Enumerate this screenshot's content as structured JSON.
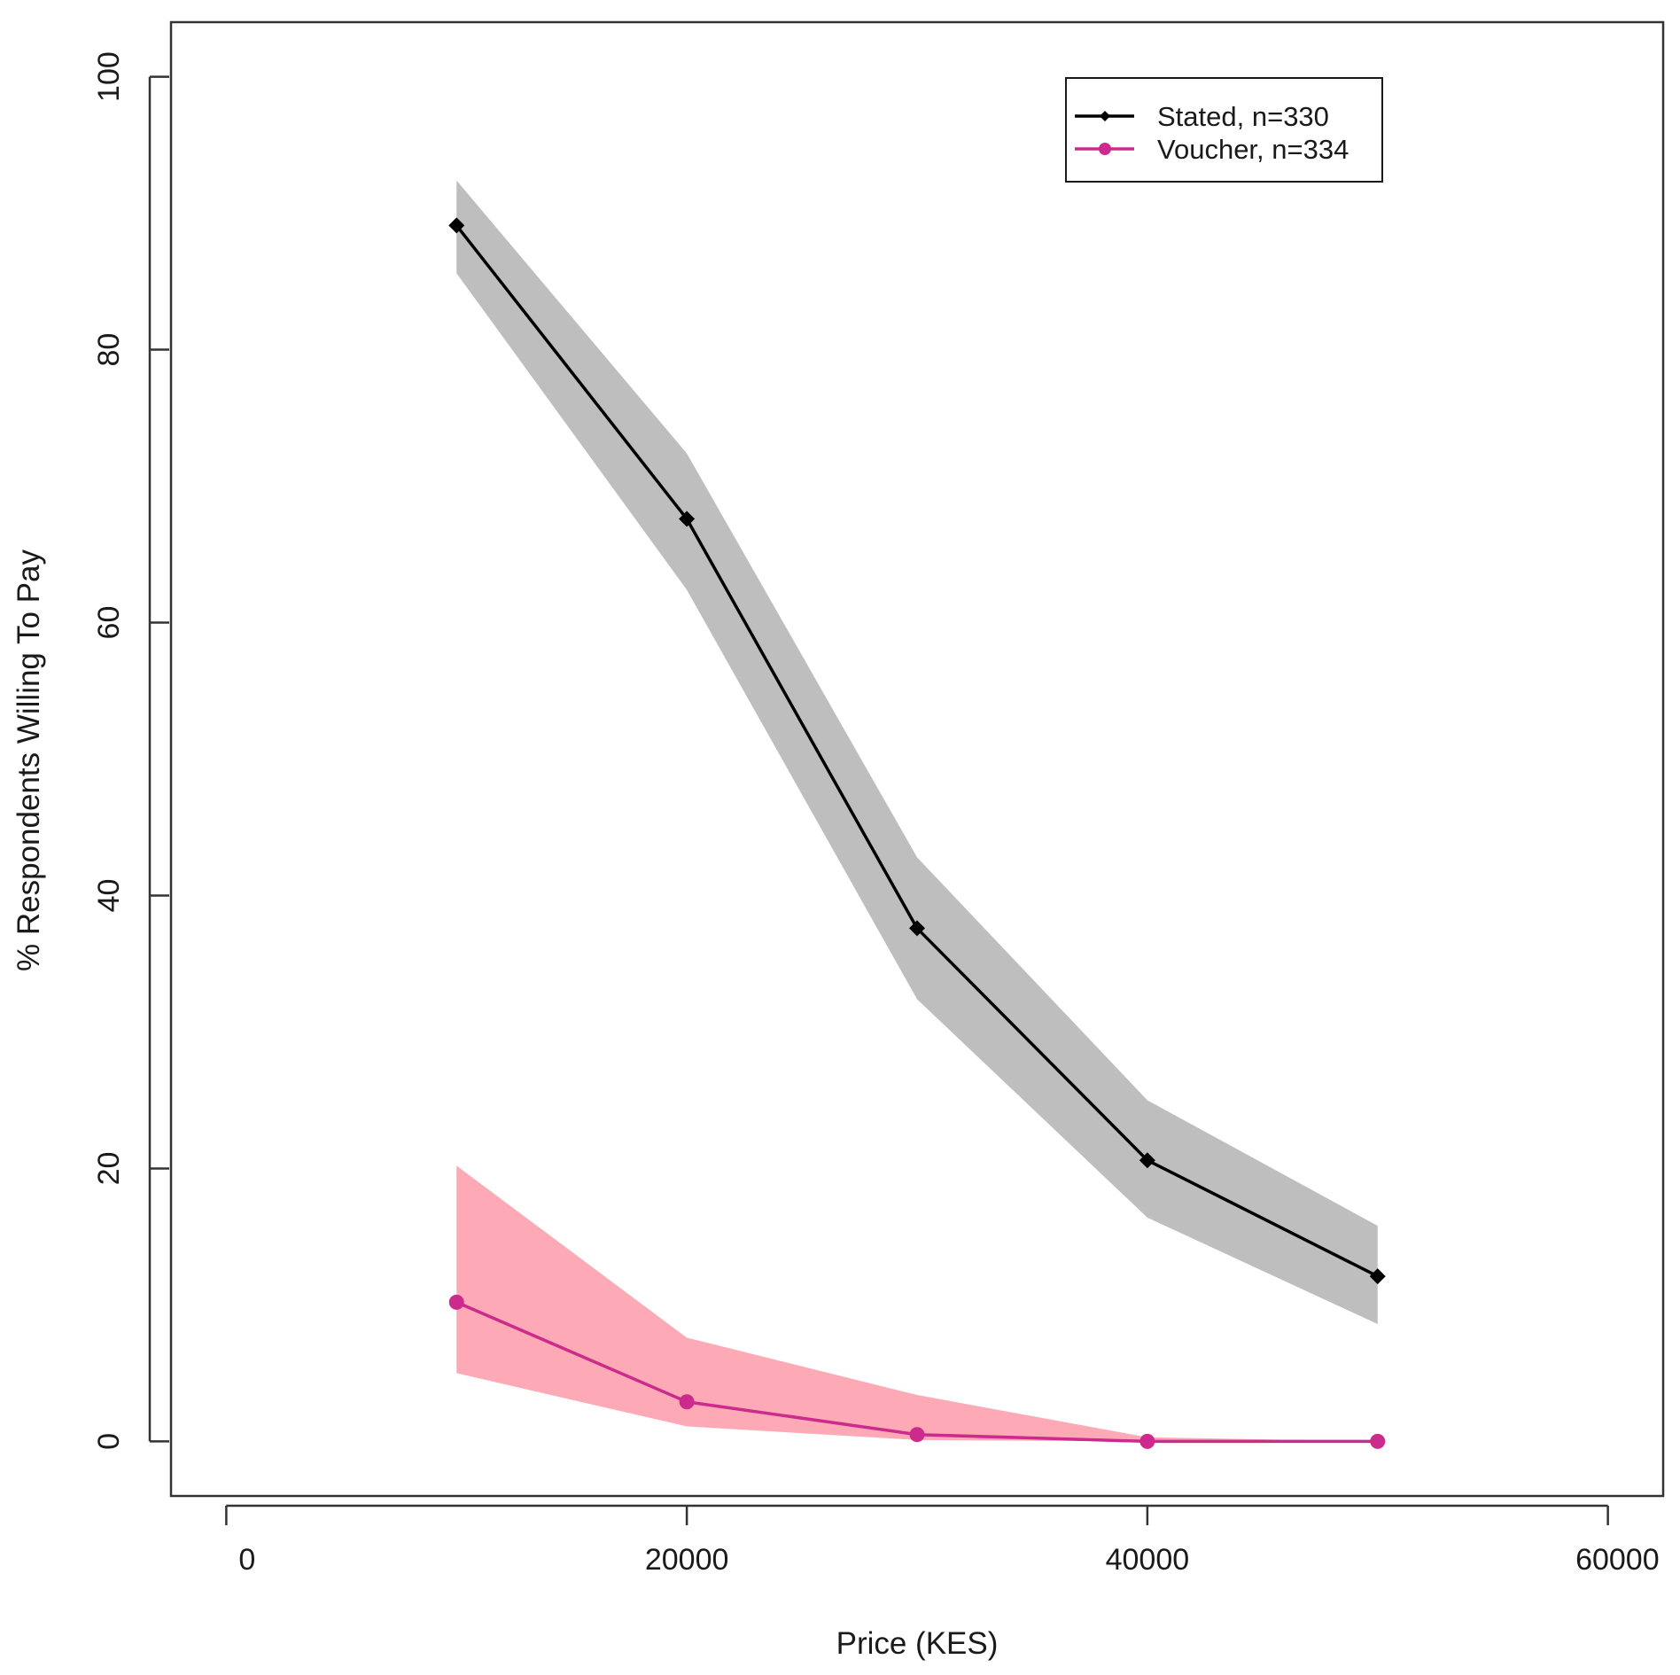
{
  "chart_data": {
    "type": "line",
    "title": "",
    "xlabel": "Price (KES)",
    "ylabel": "% Respondents Willing To Pay",
    "xlim": [
      -2400,
      62400
    ],
    "ylim": [
      -4,
      104
    ],
    "x_ticks": [
      0,
      20000,
      40000,
      60000
    ],
    "x_tick_labels": [
      "0",
      "20000",
      "40000",
      "60000"
    ],
    "y_ticks": [
      0,
      20,
      40,
      60,
      80,
      100
    ],
    "y_tick_labels": [
      "0",
      "20",
      "40",
      "60",
      "80",
      "100"
    ],
    "grid": false,
    "legend_position": "top-right",
    "series": [
      {
        "name": "Stated, n=330",
        "legend_label": "Stated, n=330",
        "color": "#000000",
        "band_color": "#bebebe",
        "marker": "diamond",
        "x": [
          10000,
          20000,
          30000,
          40000,
          50000
        ],
        "values": [
          89.1,
          67.6,
          37.6,
          20.6,
          12.1
        ],
        "ci_lower": [
          85.6,
          62.4,
          32.4,
          16.4,
          8.6
        ],
        "ci_upper": [
          92.4,
          72.4,
          42.8,
          25.0,
          15.8
        ]
      },
      {
        "name": "Voucher, n=334",
        "legend_label": "Voucher, n=334",
        "color": "#cc2a8c",
        "band_color": "#fdaab6",
        "marker": "circle",
        "x": [
          10000,
          20000,
          30000,
          40000,
          50000
        ],
        "values": [
          10.2,
          2.9,
          0.5,
          0.0,
          0.0
        ],
        "ci_lower": [
          5.0,
          1.1,
          0.1,
          0.0,
          0.0
        ],
        "ci_upper": [
          20.2,
          7.6,
          3.4,
          0.3,
          0.0
        ]
      }
    ]
  }
}
